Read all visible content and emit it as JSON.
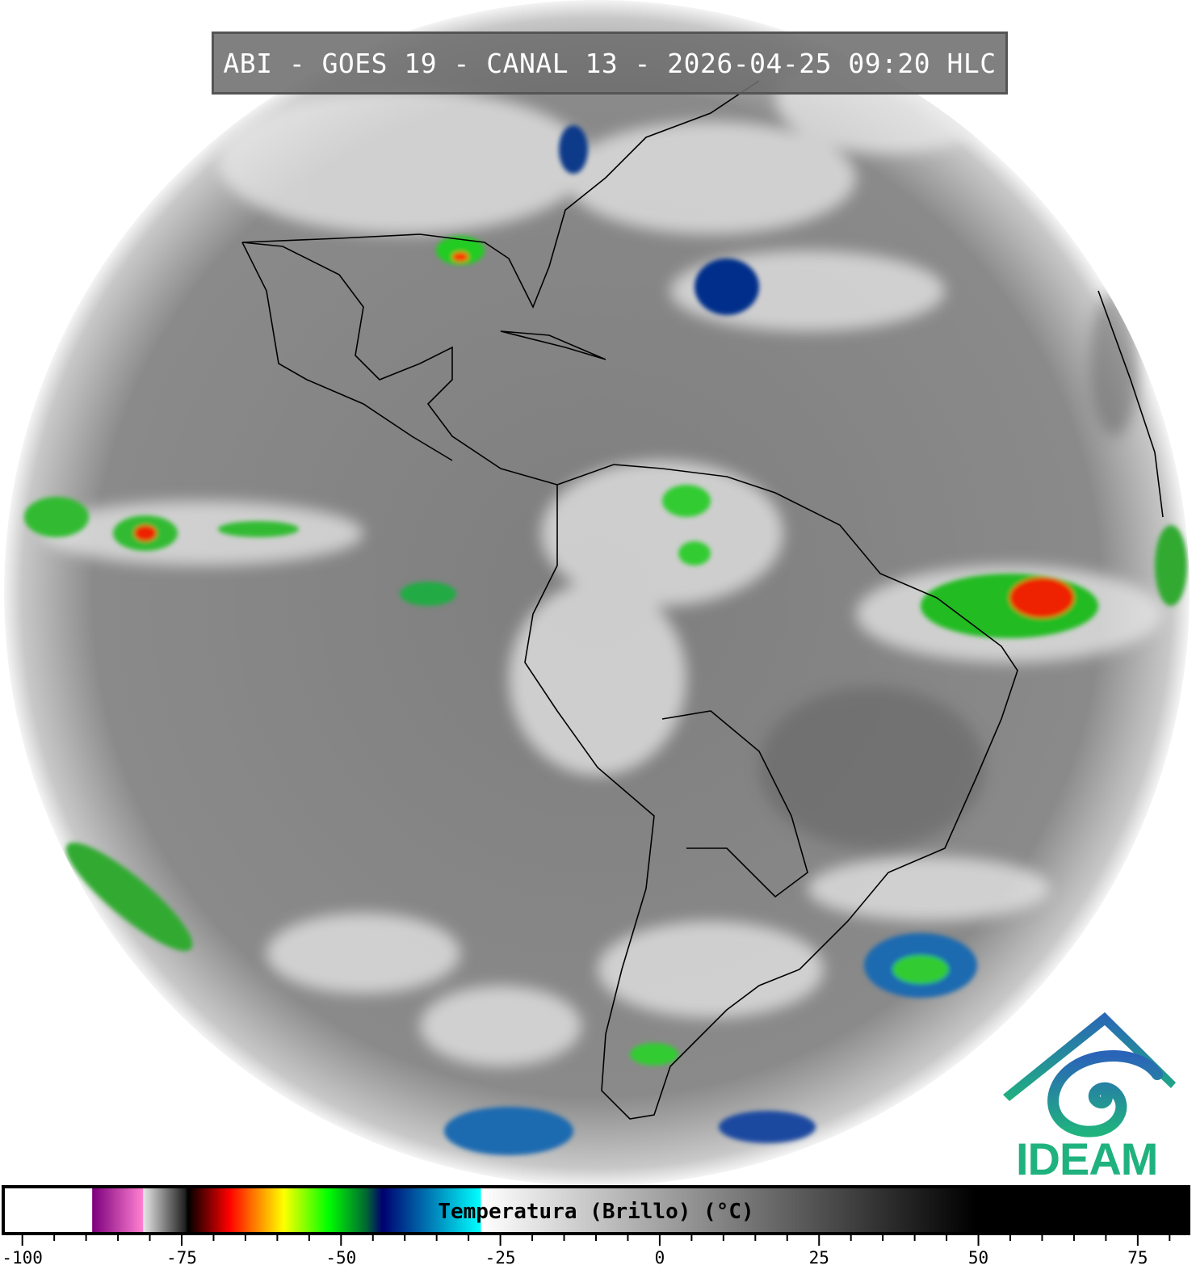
{
  "title": "ABI - GOES 19 - CANAL 13 - 2026-04-25 09:20 HLC",
  "logo": {
    "text": "IDEAM",
    "colors": [
      "#2a64b8",
      "#1fb27f"
    ]
  },
  "colorbar": {
    "label": "Temperatura (Brillo) (°C)",
    "range": [
      -103,
      83
    ],
    "major_ticks": [
      -100,
      -75,
      -50,
      -25,
      0,
      25,
      50,
      75
    ],
    "tick_labels": [
      "-100",
      "-75",
      "-50",
      "-25",
      "0",
      "25",
      "50",
      "75"
    ],
    "minor_tick_step": 5,
    "stops": [
      {
        "v": -103,
        "c": "#ffffff"
      },
      {
        "v": -89.1,
        "c": "#ffffff"
      },
      {
        "v": -89,
        "c": "#7d007d"
      },
      {
        "v": -81.1,
        "c": "#ff80d0"
      },
      {
        "v": -81,
        "c": "#e6e6e6"
      },
      {
        "v": -74.5,
        "c": "#222222"
      },
      {
        "v": -74,
        "c": "#000000"
      },
      {
        "v": -67.5,
        "c": "#ff0000"
      },
      {
        "v": -63,
        "c": "#ff8c00"
      },
      {
        "v": -59,
        "c": "#ffff00"
      },
      {
        "v": -52,
        "c": "#00ff00"
      },
      {
        "v": -46,
        "c": "#006633"
      },
      {
        "v": -43.5,
        "c": "#000070"
      },
      {
        "v": -28.1,
        "c": "#00ffff"
      },
      {
        "v": -28,
        "c": "#ffffff"
      },
      {
        "v": 49.5,
        "c": "#000000"
      },
      {
        "v": 83,
        "c": "#000000"
      }
    ]
  },
  "colors": {
    "ocean_gray": "#7a7a7a",
    "cloud_white": "#f2f2f2",
    "title_bg": "#6e6e6e"
  }
}
